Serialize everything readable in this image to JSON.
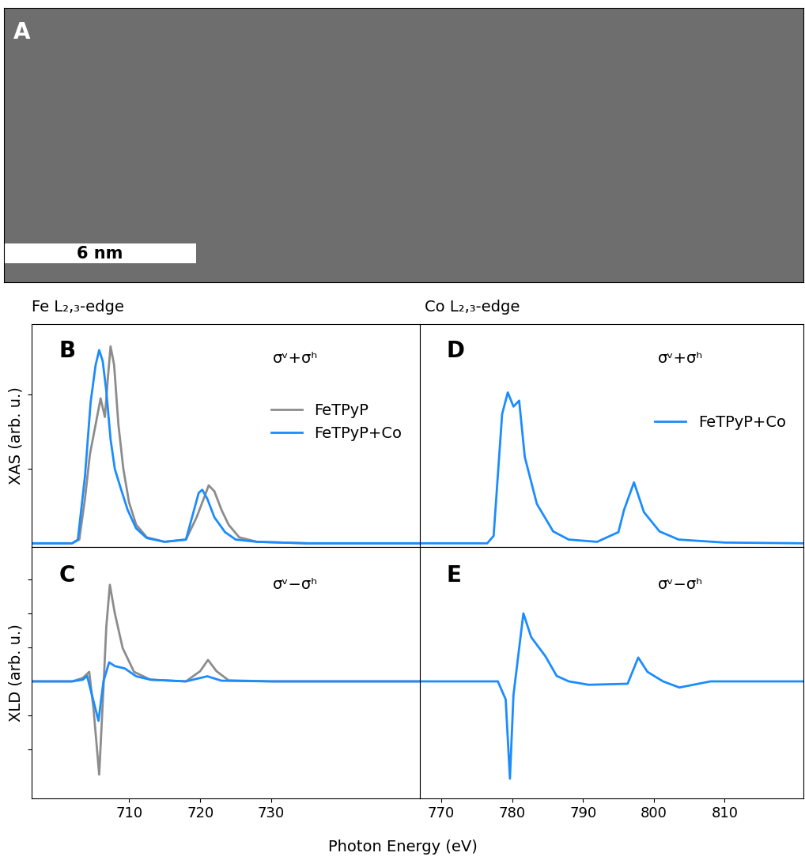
{
  "panel_a": {
    "label": "A",
    "scale_bar": "6 nm"
  },
  "headers": [
    "Fe L₂,₃-edge",
    "Co L₂,₃-edge"
  ],
  "x_label": "Photon Energy (eV)",
  "chart_data": [
    {
      "type": "line",
      "label": "B",
      "annotation": "σᵛ+σʰ",
      "y_label": "XAS (arb. u.)",
      "xlim": [
        696.3,
        750.9
      ],
      "xticks": [
        710,
        720,
        730
      ],
      "ylim": [
        -0.05,
        2.95
      ],
      "yticks": [
        1,
        2
      ],
      "tick_labels": false,
      "legend": "right",
      "series": [
        {
          "name": "FeTPyP",
          "color": "#8c8c8c",
          "x": [
            696.3,
            702.0,
            703.0,
            703.8,
            704.5,
            705.3,
            706.0,
            706.6,
            707.0,
            707.4,
            707.9,
            708.5,
            709.2,
            710.0,
            711.0,
            712.5,
            715.0,
            718.0,
            719.5,
            720.5,
            721.2,
            722.0,
            723.0,
            724.0,
            725.5,
            728.0,
            735.0,
            750.9
          ],
          "values": [
            0,
            0,
            0.05,
            0.6,
            1.2,
            1.6,
            1.95,
            1.7,
            2.2,
            2.65,
            2.4,
            1.6,
            1.0,
            0.55,
            0.25,
            0.08,
            0.02,
            0.05,
            0.35,
            0.6,
            0.78,
            0.7,
            0.45,
            0.25,
            0.08,
            0.02,
            0,
            0
          ]
        },
        {
          "name": "FeTPyP+Co",
          "color": "#1a8cff",
          "x": [
            696.3,
            702.0,
            702.8,
            703.8,
            704.6,
            705.3,
            705.8,
            706.3,
            706.8,
            707.4,
            708.0,
            708.8,
            709.8,
            711.0,
            712.5,
            715.0,
            718.0,
            719.0,
            719.8,
            720.3,
            721.0,
            722.0,
            723.5,
            725.0,
            728.0,
            735.0,
            750.9
          ],
          "values": [
            0,
            0,
            0.05,
            0.9,
            1.9,
            2.4,
            2.6,
            2.45,
            2.05,
            1.4,
            1.0,
            0.75,
            0.45,
            0.2,
            0.07,
            0.02,
            0.05,
            0.4,
            0.68,
            0.72,
            0.6,
            0.35,
            0.15,
            0.05,
            0.02,
            0,
            0
          ]
        }
      ]
    },
    {
      "type": "line",
      "label": "C",
      "annotation": "σᵛ−σʰ",
      "y_label": "XLD (arb. u.)",
      "xlim": [
        696.3,
        750.9
      ],
      "xticks": [
        710,
        720,
        730
      ],
      "ylim": [
        -3.44,
        3.95
      ],
      "yticks": [
        -2,
        -1,
        1,
        2,
        3
      ],
      "tick_labels": "x",
      "series": [
        {
          "name": "FeTPyP",
          "color": "#8c8c8c",
          "x": [
            696.3,
            702.0,
            703.5,
            704.4,
            705.0,
            705.8,
            706.4,
            706.8,
            707.3,
            708.0,
            709.1,
            710.7,
            713.0,
            718.0,
            720.0,
            721.1,
            722.3,
            724.0,
            730.0,
            750.9
          ],
          "values": [
            0,
            0,
            0.1,
            0.28,
            -0.8,
            -2.74,
            -0.2,
            1.6,
            2.84,
            2.0,
            0.98,
            0.28,
            0.05,
            0,
            0.3,
            0.63,
            0.3,
            0.03,
            0,
            0
          ]
        },
        {
          "name": "FeTPyP+Co",
          "color": "#1a8cff",
          "x": [
            696.3,
            702.0,
            703.5,
            704.1,
            704.9,
            705.7,
            706.4,
            707.2,
            708.0,
            709.4,
            711.0,
            713.0,
            718.0,
            721.0,
            723.0,
            730.0,
            750.9
          ],
          "values": [
            0,
            0,
            0.05,
            0.16,
            -0.5,
            -1.16,
            0.0,
            0.56,
            0.45,
            0.38,
            0.15,
            0.05,
            0,
            0.15,
            0.02,
            0,
            0
          ]
        }
      ]
    },
    {
      "type": "line",
      "label": "D",
      "annotation": "σᵛ+σʰ",
      "xlim": [
        767.0,
        821.1
      ],
      "xticks": [
        770,
        780,
        790,
        800,
        810
      ],
      "ylim": [
        -0.05,
        2.95
      ],
      "yticks": [],
      "tick_labels": false,
      "legend": "right",
      "series": [
        {
          "name": "FeTPyP+Co",
          "color": "#1a8cff",
          "x": [
            767.0,
            776.5,
            777.4,
            778.6,
            779.4,
            780.2,
            781.0,
            781.8,
            783.5,
            785.8,
            788.0,
            792.0,
            795.0,
            795.8,
            797.2,
            798.6,
            800.8,
            803.5,
            810.0,
            821.1
          ],
          "values": [
            0,
            0,
            0.1,
            1.74,
            2.03,
            1.84,
            1.92,
            1.16,
            0.53,
            0.16,
            0.05,
            0.02,
            0.15,
            0.45,
            0.82,
            0.42,
            0.16,
            0.05,
            0.01,
            0
          ]
        }
      ]
    },
    {
      "type": "line",
      "label": "E",
      "annotation": "σᵛ−σʰ",
      "xlim": [
        767.0,
        821.1
      ],
      "xticks": [
        770,
        780,
        790,
        800,
        810
      ],
      "ylim": [
        -3.44,
        3.95
      ],
      "yticks": [],
      "tick_labels": "x",
      "series": [
        {
          "name": "FeTPyP+Co",
          "color": "#1a8cff",
          "x": [
            767.0,
            778.0,
            779.1,
            779.7,
            780.2,
            781.6,
            782.7,
            784.7,
            786.3,
            788.0,
            790.8,
            796.3,
            797.8,
            799.1,
            801.3,
            803.6,
            808.0,
            821.1
          ],
          "values": [
            0,
            0,
            -0.53,
            -2.86,
            -0.4,
            2.0,
            1.3,
            0.74,
            0.16,
            0,
            -0.1,
            -0.07,
            0.7,
            0.28,
            0,
            -0.18,
            0,
            0
          ]
        }
      ]
    }
  ]
}
